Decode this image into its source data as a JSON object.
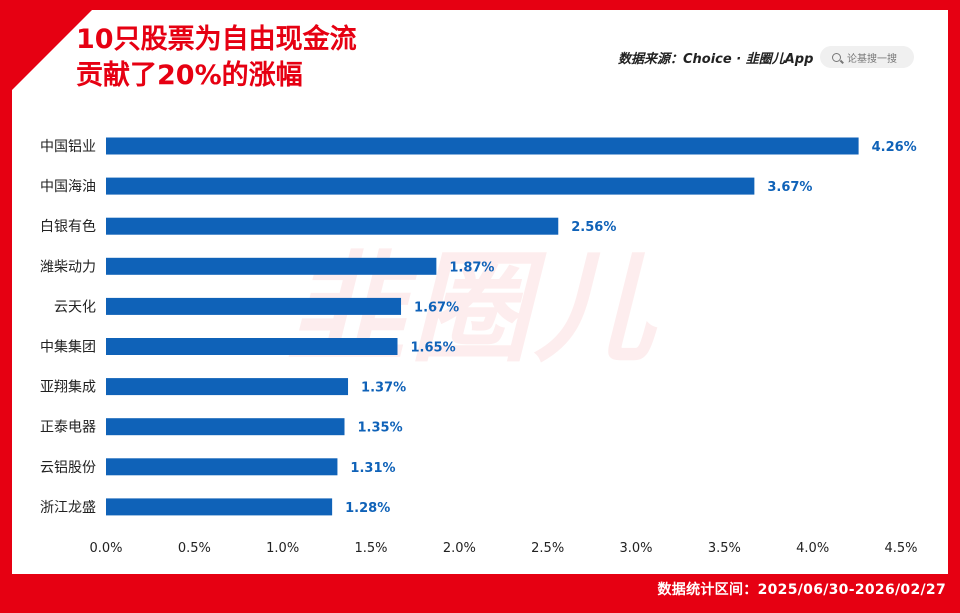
{
  "title_lines": [
    "10只股票为自由现金流",
    "贡献了20%的涨幅"
  ],
  "source": "数据来源：Choice · 韭圈儿App",
  "search_placeholder": "论基搜一搜",
  "watermark": "韭圈儿",
  "footer": "数据统计区间：2025/06/30-2026/02/27",
  "colors": {
    "brand_red": "#e60012",
    "bar": "#0f62b8",
    "label": "#0f62b8"
  },
  "chart_data": {
    "type": "bar",
    "orientation": "horizontal",
    "categories": [
      "中国铝业",
      "中国海油",
      "白银有色",
      "潍柴动力",
      "云天化",
      "中集集团",
      "亚翔集成",
      "正泰电器",
      "云铝股份",
      "浙江龙盛"
    ],
    "values": [
      4.26,
      3.67,
      2.56,
      1.87,
      1.67,
      1.65,
      1.37,
      1.35,
      1.31,
      1.28
    ],
    "value_labels": [
      "4.26%",
      "3.67%",
      "2.56%",
      "1.87%",
      "1.67%",
      "1.65%",
      "1.37%",
      "1.35%",
      "1.31%",
      "1.28%"
    ],
    "xlim": [
      0,
      4.5
    ],
    "xticks": [
      0,
      0.5,
      1,
      1.5,
      2,
      2.5,
      3,
      3.5,
      4,
      4.5
    ],
    "xtick_labels": [
      "0.0%",
      "0.5%",
      "1.0%",
      "1.5%",
      "2.0%",
      "2.5%",
      "3.0%",
      "3.5%",
      "4.0%",
      "4.5%"
    ],
    "grid": false,
    "legend": "none"
  }
}
